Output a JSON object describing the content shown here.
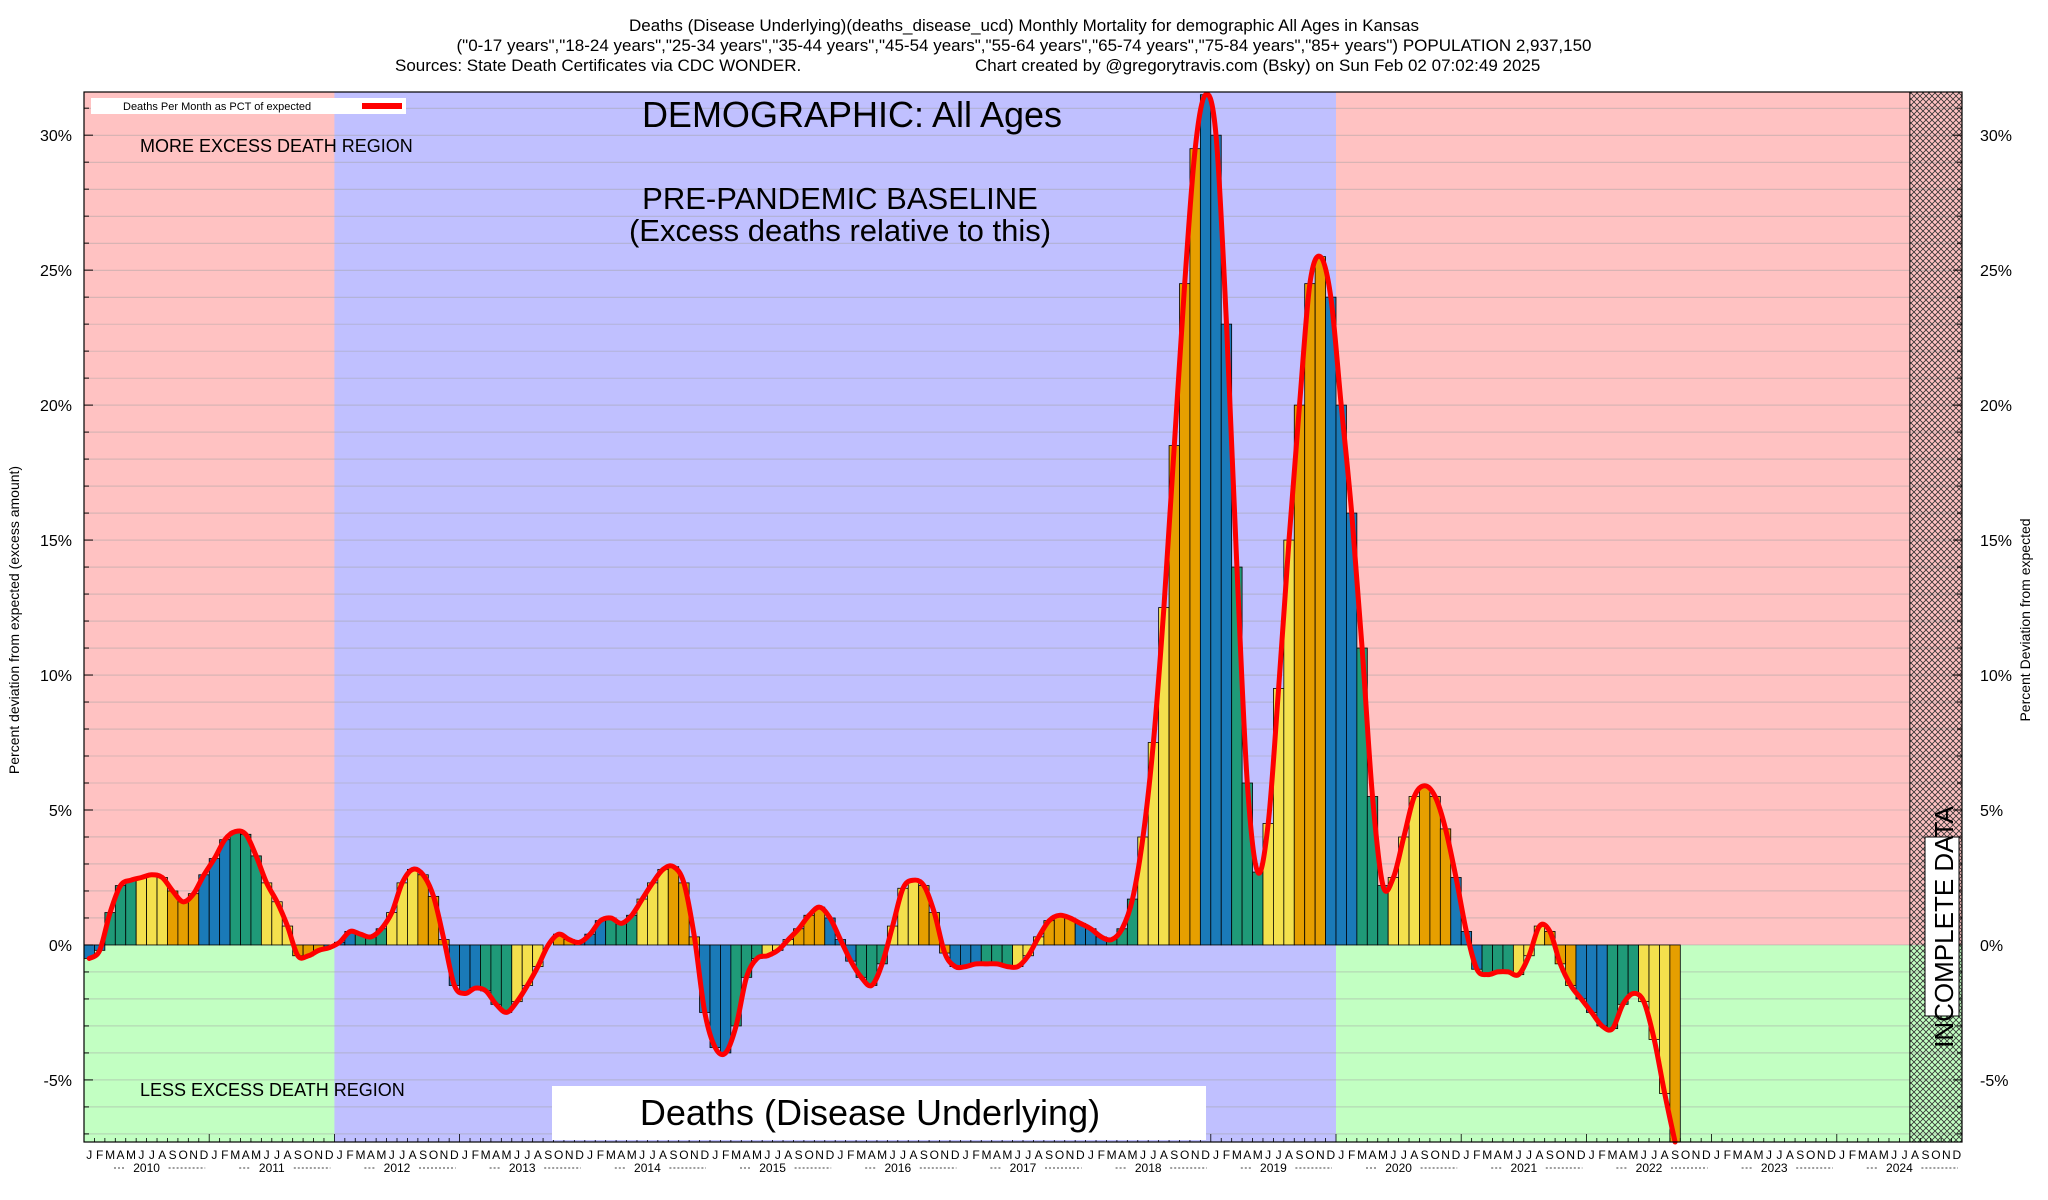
{
  "chart_data": {
    "type": "bar",
    "title_lines": [
      "Deaths (Disease Underlying)(deaths_disease_ucd) Monthly Mortality for demographic All Ages in Kansas",
      "(\"0-17 years\",\"18-24 years\",\"25-34 years\",\"35-44 years\",\"45-54 years\",\"55-64 years\",\"65-74 years\",\"75-84 years\",\"85+ years\") POPULATION 2,937,150"
    ],
    "sources": "Sources: State Death Certificates via CDC WONDER.",
    "credit": "Chart created by @gregorytravis.com (Bsky) on Sun Feb 02 07:02:49 2025",
    "ylabel_left": "Percent deviation from expected (excess amount)",
    "ylabel_right": "Percent Deviation from expected",
    "legend_label": "Deaths Per Month as PCT of expected",
    "legend_placement": "top-left",
    "ylim": [
      -7.3,
      31.6
    ],
    "yticks": [
      -5,
      0,
      5,
      10,
      15,
      20,
      25,
      30
    ],
    "ytick_labels": [
      "-5%",
      "0%",
      "5%",
      "10%",
      "15%",
      "20%",
      "25%",
      "30%"
    ],
    "years": [
      "2010",
      "2011",
      "2012",
      "2013",
      "2014",
      "2015",
      "2016",
      "2017",
      "2018",
      "2019",
      "2020",
      "2021",
      "2022",
      "2023",
      "2024"
    ],
    "month_letters": [
      "J",
      "F",
      "M",
      "A",
      "M",
      "J",
      "J",
      "A",
      "S",
      "O",
      "N",
      "D"
    ],
    "months_start": "2010-01",
    "baseline_period": {
      "start": "2012-01",
      "end": "2019-12"
    },
    "incomplete_period": {
      "start": "2024-08",
      "end": "2024-12"
    },
    "annotations": {
      "demographic": "DEMOGRAPHIC: All Ages",
      "baseline_line1": "PRE-PANDEMIC BASELINE",
      "baseline_line2": "(Excess deaths relative to this)",
      "more_region": "MORE EXCESS DEATH REGION",
      "less_region": "LESS EXCESS DEATH REGION",
      "metric": "Deaths (Disease Underlying)",
      "incomplete": "INCOMPLETE DATA"
    },
    "season_colors": {
      "winter": "#1a7ab8",
      "spring": "#1f9a78",
      "summer": "#f4e04d",
      "fall": "#e69f00"
    },
    "region_colors": {
      "excess": "#ffc2c2",
      "deficit": "#c2ffc2",
      "baseline": "#c0c0ff",
      "line": "#ff0000"
    },
    "values": [
      -0.5,
      -0.2,
      1.2,
      2.2,
      2.4,
      2.5,
      2.6,
      2.5,
      2.0,
      1.6,
      1.9,
      2.6,
      3.2,
      3.9,
      4.2,
      4.1,
      3.3,
      2.3,
      1.6,
      0.7,
      -0.4,
      -0.4,
      -0.2,
      -0.1,
      0.1,
      0.5,
      0.4,
      0.3,
      0.6,
      1.2,
      2.3,
      2.8,
      2.6,
      1.8,
      0.2,
      -1.5,
      -1.8,
      -1.6,
      -1.7,
      -2.2,
      -2.5,
      -2.1,
      -1.5,
      -0.8,
      0.0,
      0.4,
      0.2,
      0.1,
      0.4,
      0.9,
      1.0,
      0.8,
      1.1,
      1.7,
      2.3,
      2.8,
      2.9,
      2.3,
      0.3,
      -2.5,
      -3.8,
      -4.0,
      -3.0,
      -1.2,
      -0.5,
      -0.4,
      -0.2,
      0.2,
      0.6,
      1.1,
      1.4,
      1.0,
      0.2,
      -0.6,
      -1.2,
      -1.5,
      -0.7,
      0.7,
      2.1,
      2.4,
      2.2,
      1.2,
      -0.3,
      -0.8,
      -0.8,
      -0.7,
      -0.7,
      -0.7,
      -0.8,
      -0.8,
      -0.4,
      0.3,
      0.9,
      1.1,
      1.0,
      0.8,
      0.6,
      0.3,
      0.2,
      0.6,
      1.7,
      4.0,
      7.5,
      12.5,
      18.5,
      24.5,
      29.5,
      31.5,
      30.0,
      23.0,
      14.0,
      6.0,
      2.7,
      4.5,
      9.5,
      15.0,
      20.0,
      24.5,
      25.5,
      24.0,
      20.0,
      16.0,
      11.0,
      5.5,
      2.2,
      2.5,
      4.0,
      5.5,
      5.9,
      5.5,
      4.3,
      2.5,
      0.5,
      -0.9,
      -1.1,
      -1.0,
      -1.0,
      -1.1,
      -0.4,
      0.7,
      0.5,
      -0.7,
      -1.5,
      -2.0,
      -2.5,
      -3.0,
      -3.1,
      -2.2,
      -1.8,
      -2.1,
      -3.5,
      -5.5,
      -7.3
    ]
  }
}
